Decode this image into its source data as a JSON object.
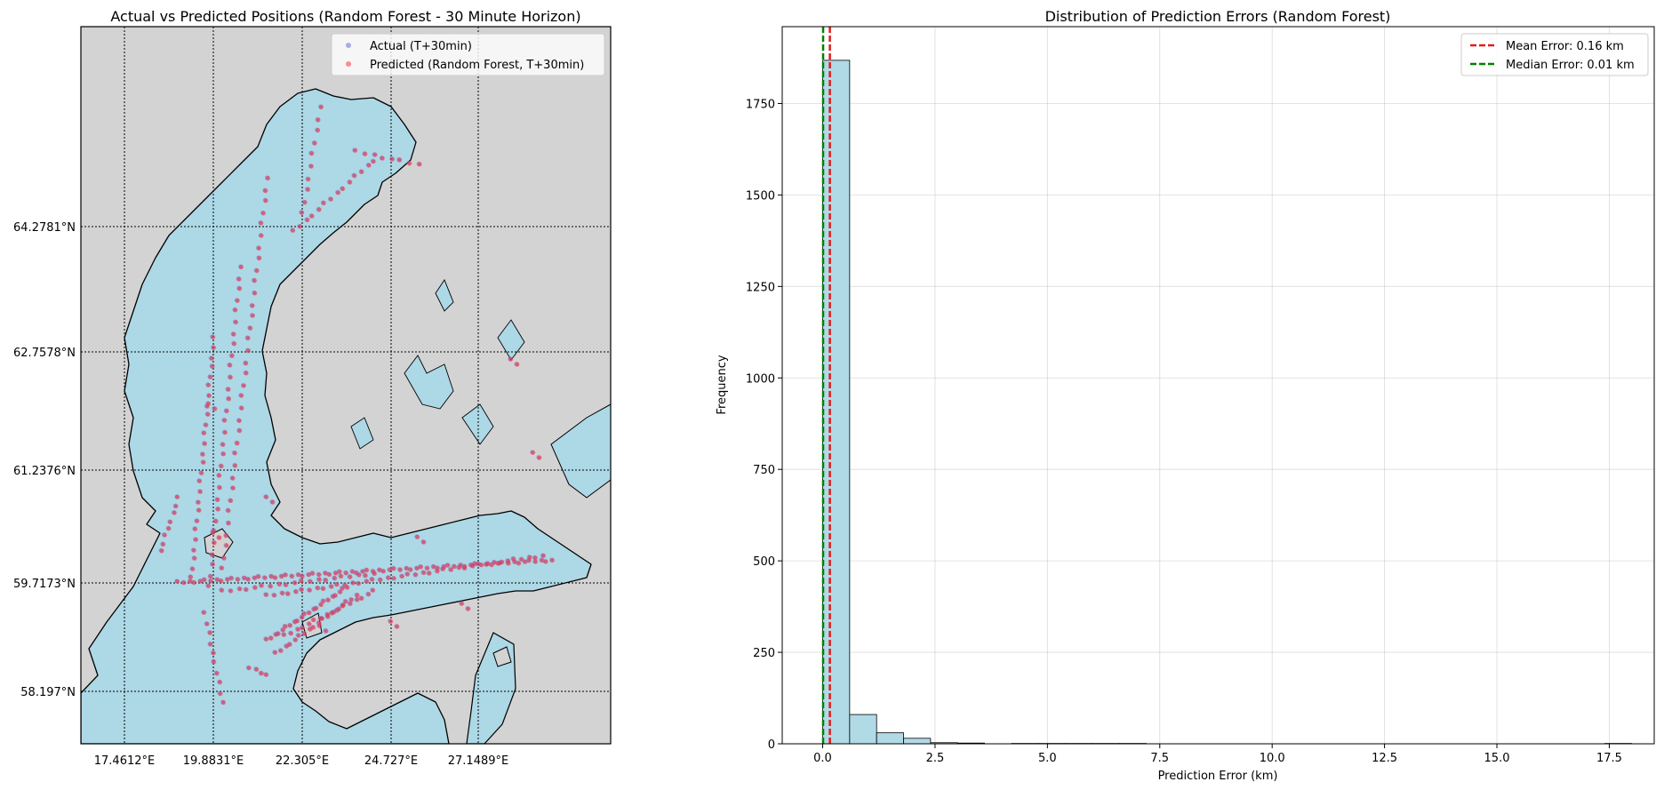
{
  "chart_data": [
    {
      "type": "scatter",
      "title": "Actual vs Predicted Positions (Random Forest - 30 Minute Horizon)",
      "xlabel": "",
      "ylabel": "",
      "map": true,
      "lat_ticks": [
        "64.2781°N",
        "62.7578°N",
        "61.2376°N",
        "59.7173°N",
        "58.197°N"
      ],
      "lat_values": [
        64.2781,
        62.7578,
        61.2376,
        59.7173,
        58.197
      ],
      "lon_ticks": [
        "17.4612°E",
        "19.8831°E",
        "22.305°E",
        "24.727°E",
        "27.1489°E"
      ],
      "lon_values": [
        17.4612,
        19.8831,
        22.305,
        24.727,
        27.1489
      ],
      "xlim": [
        16.3,
        30.8
      ],
      "ylim": [
        57.5,
        66.9
      ],
      "grid": true,
      "legend_position": "top-right",
      "series": [
        {
          "name": "Actual (T+30min)",
          "color": "#7a7ae0"
        },
        {
          "name": "Predicted (Random Forest, T+30min)",
          "color": "#ff2222"
        }
      ],
      "colors": {
        "sea": "#add8e6",
        "land": "#d3d3d3"
      }
    },
    {
      "type": "bar",
      "title": "Distribution of Prediction Errors (Random Forest)",
      "xlabel": "Prediction Error (km)",
      "ylabel": "Frequency",
      "xlim": [
        -0.9,
        18.5
      ],
      "ylim": [
        0,
        1960
      ],
      "x_ticks": [
        "0.0",
        "2.5",
        "5.0",
        "7.5",
        "10.0",
        "12.5",
        "15.0",
        "17.5"
      ],
      "x_tick_values": [
        0,
        2.5,
        5,
        7.5,
        10,
        12.5,
        15,
        17.5
      ],
      "y_ticks": [
        "0",
        "250",
        "500",
        "750",
        "1000",
        "1250",
        "1500",
        "1750"
      ],
      "y_tick_values": [
        0,
        250,
        500,
        750,
        1000,
        1250,
        1500,
        1750
      ],
      "bin_edges": [
        0,
        0.6,
        1.2,
        1.8,
        2.4,
        3.0,
        3.6,
        4.2,
        4.8,
        5.4,
        6.0,
        6.6,
        7.2,
        7.8,
        8.4,
        9.0,
        9.6,
        10.2,
        10.8,
        11.4,
        12.0,
        12.6,
        13.2,
        13.8,
        14.4,
        15.0,
        15.6,
        16.2,
        16.8,
        17.4,
        18.0
      ],
      "values": [
        1868,
        80,
        30,
        15,
        3,
        2,
        0,
        1,
        1,
        1,
        1,
        1,
        0,
        0,
        0,
        0,
        0,
        0,
        0,
        0,
        0,
        0,
        0,
        0,
        0,
        0,
        0,
        0,
        0,
        1
      ],
      "bar_color": "#add8e6",
      "grid": true,
      "legend_position": "top-right",
      "reference_lines": [
        {
          "name": "Mean Error: 0.16 km",
          "value": 0.16,
          "color": "#e31a1c"
        },
        {
          "name": "Median Error: 0.01 km",
          "value": 0.01,
          "color": "#008000"
        }
      ]
    }
  ]
}
